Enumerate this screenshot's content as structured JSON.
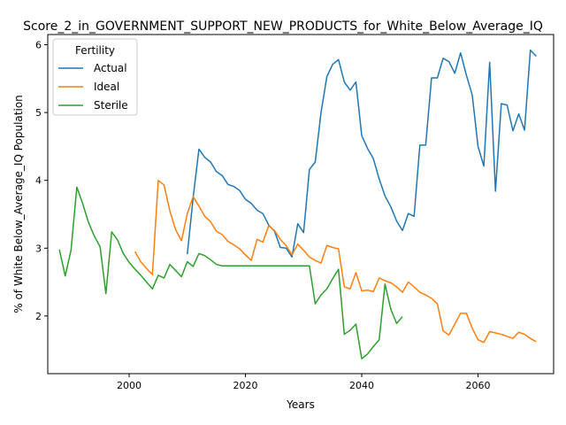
{
  "chart_data": {
    "type": "line",
    "title": "Score_2_in_GOVERNMENT_SUPPORT_NEW_PRODUCTS_for_White_Below_Average_IQ",
    "xlabel": "Years",
    "ylabel": "% of White Below_Average_IQ Population",
    "xlim": [
      1986,
      2073
    ],
    "ylim": [
      1.15,
      6.15
    ],
    "x_ticks": [
      2000,
      2020,
      2040,
      2060
    ],
    "y_ticks": [
      2,
      3,
      4,
      5,
      6
    ],
    "grid": false,
    "legend": {
      "title": "Fertility",
      "placement": "top-left"
    },
    "series": [
      {
        "name": "Actual",
        "color": "#1f77b4",
        "points": [
          [
            2010,
            2.91
          ],
          [
            2011,
            3.74
          ],
          [
            2012,
            4.46
          ],
          [
            2013,
            4.34
          ],
          [
            2014,
            4.27
          ],
          [
            2015,
            4.13
          ],
          [
            2016,
            4.07
          ],
          [
            2017,
            3.94
          ],
          [
            2018,
            3.91
          ],
          [
            2019,
            3.85
          ],
          [
            2020,
            3.72
          ],
          [
            2021,
            3.66
          ],
          [
            2022,
            3.56
          ],
          [
            2023,
            3.51
          ],
          [
            2024,
            3.34
          ],
          [
            2025,
            3.25
          ],
          [
            2026,
            3.01
          ],
          [
            2027,
            3.0
          ],
          [
            2028,
            2.87
          ],
          [
            2029,
            3.36
          ],
          [
            2030,
            3.23
          ],
          [
            2031,
            4.16
          ],
          [
            2032,
            4.27
          ],
          [
            2033,
            5.0
          ],
          [
            2034,
            5.53
          ],
          [
            2035,
            5.71
          ],
          [
            2036,
            5.78
          ],
          [
            2037,
            5.45
          ],
          [
            2038,
            5.33
          ],
          [
            2039,
            5.45
          ],
          [
            2040,
            4.66
          ],
          [
            2041,
            4.47
          ],
          [
            2042,
            4.32
          ],
          [
            2043,
            4.02
          ],
          [
            2044,
            3.77
          ],
          [
            2045,
            3.61
          ],
          [
            2046,
            3.4
          ],
          [
            2047,
            3.26
          ],
          [
            2048,
            3.51
          ],
          [
            2049,
            3.47
          ],
          [
            2050,
            4.52
          ],
          [
            2051,
            4.52
          ],
          [
            2052,
            5.51
          ],
          [
            2053,
            5.51
          ],
          [
            2054,
            5.8
          ],
          [
            2055,
            5.75
          ],
          [
            2056,
            5.58
          ],
          [
            2057,
            5.88
          ],
          [
            2058,
            5.55
          ],
          [
            2059,
            5.26
          ],
          [
            2060,
            4.5
          ],
          [
            2061,
            4.21
          ],
          [
            2062,
            5.74
          ],
          [
            2063,
            3.84
          ],
          [
            2064,
            5.13
          ],
          [
            2065,
            5.11
          ],
          [
            2066,
            4.73
          ],
          [
            2067,
            4.98
          ],
          [
            2068,
            4.74
          ],
          [
            2069,
            5.92
          ],
          [
            2070,
            5.83
          ]
        ]
      },
      {
        "name": "Ideal",
        "color": "#ff7f0e",
        "points": [
          [
            2001,
            2.95
          ],
          [
            2002,
            2.8
          ],
          [
            2003,
            2.7
          ],
          [
            2004,
            2.61
          ],
          [
            2005,
            4.0
          ],
          [
            2006,
            3.93
          ],
          [
            2007,
            3.55
          ],
          [
            2008,
            3.27
          ],
          [
            2009,
            3.11
          ],
          [
            2010,
            3.51
          ],
          [
            2011,
            3.76
          ],
          [
            2012,
            3.62
          ],
          [
            2013,
            3.47
          ],
          [
            2014,
            3.39
          ],
          [
            2015,
            3.25
          ],
          [
            2016,
            3.2
          ],
          [
            2017,
            3.1
          ],
          [
            2018,
            3.05
          ],
          [
            2019,
            2.99
          ],
          [
            2020,
            2.9
          ],
          [
            2021,
            2.82
          ],
          [
            2022,
            3.13
          ],
          [
            2023,
            3.09
          ],
          [
            2024,
            3.33
          ],
          [
            2025,
            3.26
          ],
          [
            2026,
            3.13
          ],
          [
            2027,
            3.04
          ],
          [
            2028,
            2.9
          ],
          [
            2029,
            3.06
          ],
          [
            2030,
            2.97
          ],
          [
            2031,
            2.87
          ],
          [
            2032,
            2.82
          ],
          [
            2033,
            2.78
          ],
          [
            2034,
            3.04
          ],
          [
            2035,
            3.01
          ],
          [
            2036,
            2.99
          ],
          [
            2037,
            2.43
          ],
          [
            2038,
            2.4
          ],
          [
            2039,
            2.64
          ],
          [
            2040,
            2.37
          ],
          [
            2041,
            2.38
          ],
          [
            2042,
            2.36
          ],
          [
            2043,
            2.56
          ],
          [
            2044,
            2.52
          ],
          [
            2045,
            2.49
          ],
          [
            2046,
            2.43
          ],
          [
            2047,
            2.35
          ],
          [
            2048,
            2.5
          ],
          [
            2049,
            2.43
          ],
          [
            2050,
            2.35
          ],
          [
            2051,
            2.31
          ],
          [
            2052,
            2.26
          ],
          [
            2053,
            2.18
          ],
          [
            2054,
            1.78
          ],
          [
            2055,
            1.72
          ],
          [
            2056,
            1.88
          ],
          [
            2057,
            2.04
          ],
          [
            2058,
            2.04
          ],
          [
            2059,
            1.82
          ],
          [
            2060,
            1.65
          ],
          [
            2061,
            1.61
          ],
          [
            2062,
            1.77
          ],
          [
            2063,
            1.75
          ],
          [
            2064,
            1.73
          ],
          [
            2065,
            1.7
          ],
          [
            2066,
            1.67
          ],
          [
            2067,
            1.76
          ],
          [
            2068,
            1.73
          ],
          [
            2069,
            1.67
          ],
          [
            2070,
            1.62
          ]
        ]
      },
      {
        "name": "Sterile",
        "color": "#2ca02c",
        "points": [
          [
            1988,
            2.98
          ],
          [
            1989,
            2.59
          ],
          [
            1990,
            2.97
          ],
          [
            1991,
            3.9
          ],
          [
            1992,
            3.66
          ],
          [
            1993,
            3.38
          ],
          [
            1994,
            3.18
          ],
          [
            1995,
            3.02
          ],
          [
            1996,
            2.33
          ],
          [
            1997,
            3.24
          ],
          [
            1998,
            3.12
          ],
          [
            1999,
            2.92
          ],
          [
            2000,
            2.79
          ],
          [
            2001,
            2.69
          ],
          [
            2002,
            2.6
          ],
          [
            2003,
            2.5
          ],
          [
            2004,
            2.4
          ],
          [
            2005,
            2.6
          ],
          [
            2006,
            2.56
          ],
          [
            2007,
            2.76
          ],
          [
            2008,
            2.67
          ],
          [
            2009,
            2.58
          ],
          [
            2010,
            2.8
          ],
          [
            2011,
            2.73
          ],
          [
            2012,
            2.92
          ],
          [
            2013,
            2.89
          ],
          [
            2014,
            2.83
          ],
          [
            2015,
            2.76
          ],
          [
            2016,
            2.74
          ],
          [
            2017,
            2.74
          ],
          [
            2018,
            2.74
          ],
          [
            2019,
            2.74
          ],
          [
            2020,
            2.74
          ],
          [
            2021,
            2.74
          ],
          [
            2022,
            2.74
          ],
          [
            2023,
            2.74
          ],
          [
            2024,
            2.74
          ],
          [
            2025,
            2.74
          ],
          [
            2026,
            2.74
          ],
          [
            2027,
            2.74
          ],
          [
            2028,
            2.74
          ],
          [
            2029,
            2.74
          ],
          [
            2030,
            2.74
          ],
          [
            2031,
            2.74
          ],
          [
            2032,
            2.18
          ],
          [
            2033,
            2.31
          ],
          [
            2034,
            2.4
          ],
          [
            2035,
            2.55
          ],
          [
            2036,
            2.69
          ],
          [
            2037,
            1.73
          ],
          [
            2038,
            1.79
          ],
          [
            2039,
            1.88
          ],
          [
            2040,
            1.37
          ],
          [
            2041,
            1.44
          ],
          [
            2042,
            1.55
          ],
          [
            2043,
            1.65
          ],
          [
            2044,
            2.47
          ],
          [
            2045,
            2.1
          ],
          [
            2046,
            1.89
          ],
          [
            2047,
            1.99
          ]
        ]
      }
    ]
  }
}
